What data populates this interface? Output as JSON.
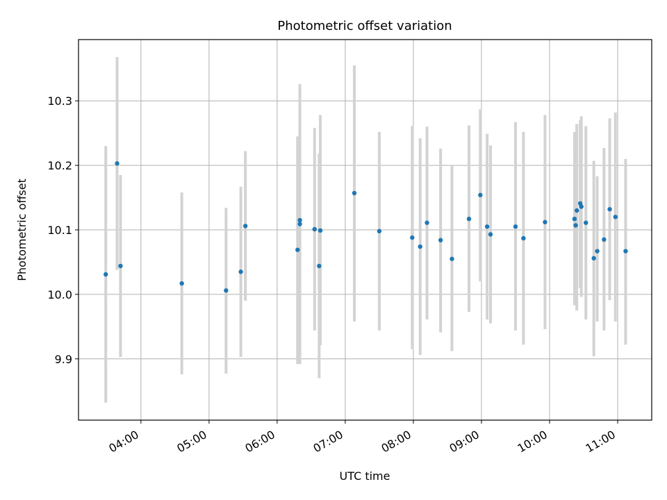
{
  "chart_data": {
    "type": "scatter",
    "title": "Photometric offset variation",
    "xlabel": "UTC time",
    "ylabel": "Photometric offset",
    "x_tick_labels": [
      "04:00",
      "05:00",
      "06:00",
      "07:00",
      "08:00",
      "09:00",
      "10:00",
      "11:00"
    ],
    "x_tick_hours": [
      4,
      5,
      6,
      7,
      8,
      9,
      10,
      11
    ],
    "y_tick_labels": [
      "9.9",
      "10.0",
      "10.1",
      "10.2",
      "10.3"
    ],
    "y_ticks": [
      9.9,
      10.0,
      10.1,
      10.2,
      10.3
    ],
    "xlim": [
      "03:05",
      "11:30"
    ],
    "ylim": [
      9.805,
      10.395
    ],
    "grid": true,
    "colors": {
      "point": "#1f77b4",
      "errorbar": "#d3d3d3",
      "grid": "#b0b0b0"
    },
    "points": [
      {
        "time": "03:29",
        "y": 10.031,
        "low": 9.832,
        "high": 10.23
      },
      {
        "time": "03:39",
        "y": 10.203,
        "low": 10.038,
        "high": 10.368
      },
      {
        "time": "03:42",
        "y": 10.044,
        "low": 9.903,
        "high": 10.185
      },
      {
        "time": "04:36",
        "y": 10.017,
        "low": 9.876,
        "high": 10.158
      },
      {
        "time": "05:15",
        "y": 10.006,
        "low": 9.877,
        "high": 10.134
      },
      {
        "time": "05:28",
        "y": 10.035,
        "low": 9.903,
        "high": 10.167
      },
      {
        "time": "05:32",
        "y": 10.106,
        "low": 9.99,
        "high": 10.222
      },
      {
        "time": "06:18",
        "y": 10.069,
        "low": 9.892,
        "high": 10.245
      },
      {
        "time": "06:20",
        "y": 10.109,
        "low": 9.892,
        "high": 10.326
      },
      {
        "time": "06:20",
        "y": 10.115,
        "low": 9.97,
        "high": 10.26
      },
      {
        "time": "06:33",
        "y": 10.101,
        "low": 9.944,
        "high": 10.258
      },
      {
        "time": "06:37",
        "y": 10.044,
        "low": 9.87,
        "high": 10.218
      },
      {
        "time": "06:38",
        "y": 10.099,
        "low": 9.921,
        "high": 10.278
      },
      {
        "time": "07:08",
        "y": 10.157,
        "low": 9.958,
        "high": 10.355
      },
      {
        "time": "07:30",
        "y": 10.098,
        "low": 9.944,
        "high": 10.252
      },
      {
        "time": "07:59",
        "y": 10.088,
        "low": 9.915,
        "high": 10.261
      },
      {
        "time": "08:06",
        "y": 10.074,
        "low": 9.906,
        "high": 10.242
      },
      {
        "time": "08:12",
        "y": 10.111,
        "low": 9.961,
        "high": 10.26
      },
      {
        "time": "08:24",
        "y": 10.084,
        "low": 9.941,
        "high": 10.226
      },
      {
        "time": "08:34",
        "y": 10.055,
        "low": 9.912,
        "high": 10.199
      },
      {
        "time": "08:49",
        "y": 10.117,
        "low": 9.973,
        "high": 10.262
      },
      {
        "time": "08:59",
        "y": 10.154,
        "low": 10.02,
        "high": 10.287
      },
      {
        "time": "09:05",
        "y": 10.105,
        "low": 9.961,
        "high": 10.249
      },
      {
        "time": "09:08",
        "y": 10.093,
        "low": 9.955,
        "high": 10.231
      },
      {
        "time": "09:30",
        "y": 10.105,
        "low": 9.944,
        "high": 10.267
      },
      {
        "time": "09:37",
        "y": 10.087,
        "low": 9.922,
        "high": 10.252
      },
      {
        "time": "09:56",
        "y": 10.112,
        "low": 9.946,
        "high": 10.278
      },
      {
        "time": "10:22",
        "y": 10.117,
        "low": 9.983,
        "high": 10.252
      },
      {
        "time": "10:23",
        "y": 10.107,
        "low": 9.997,
        "high": 10.218
      },
      {
        "time": "10:24",
        "y": 10.13,
        "low": 9.975,
        "high": 10.264
      },
      {
        "time": "10:27",
        "y": 10.141,
        "low": 10.01,
        "high": 10.27
      },
      {
        "time": "10:28",
        "y": 10.136,
        "low": 9.996,
        "high": 10.276
      },
      {
        "time": "10:32",
        "y": 10.111,
        "low": 9.961,
        "high": 10.261
      },
      {
        "time": "10:39",
        "y": 10.056,
        "low": 9.904,
        "high": 10.207
      },
      {
        "time": "10:42",
        "y": 10.067,
        "low": 9.958,
        "high": 10.183
      },
      {
        "time": "10:48",
        "y": 10.085,
        "low": 9.944,
        "high": 10.227
      },
      {
        "time": "10:53",
        "y": 10.132,
        "low": 9.991,
        "high": 10.273
      },
      {
        "time": "10:58",
        "y": 10.12,
        "low": 9.958,
        "high": 10.282
      },
      {
        "time": "11:07",
        "y": 10.067,
        "low": 9.922,
        "high": 10.21
      }
    ]
  }
}
